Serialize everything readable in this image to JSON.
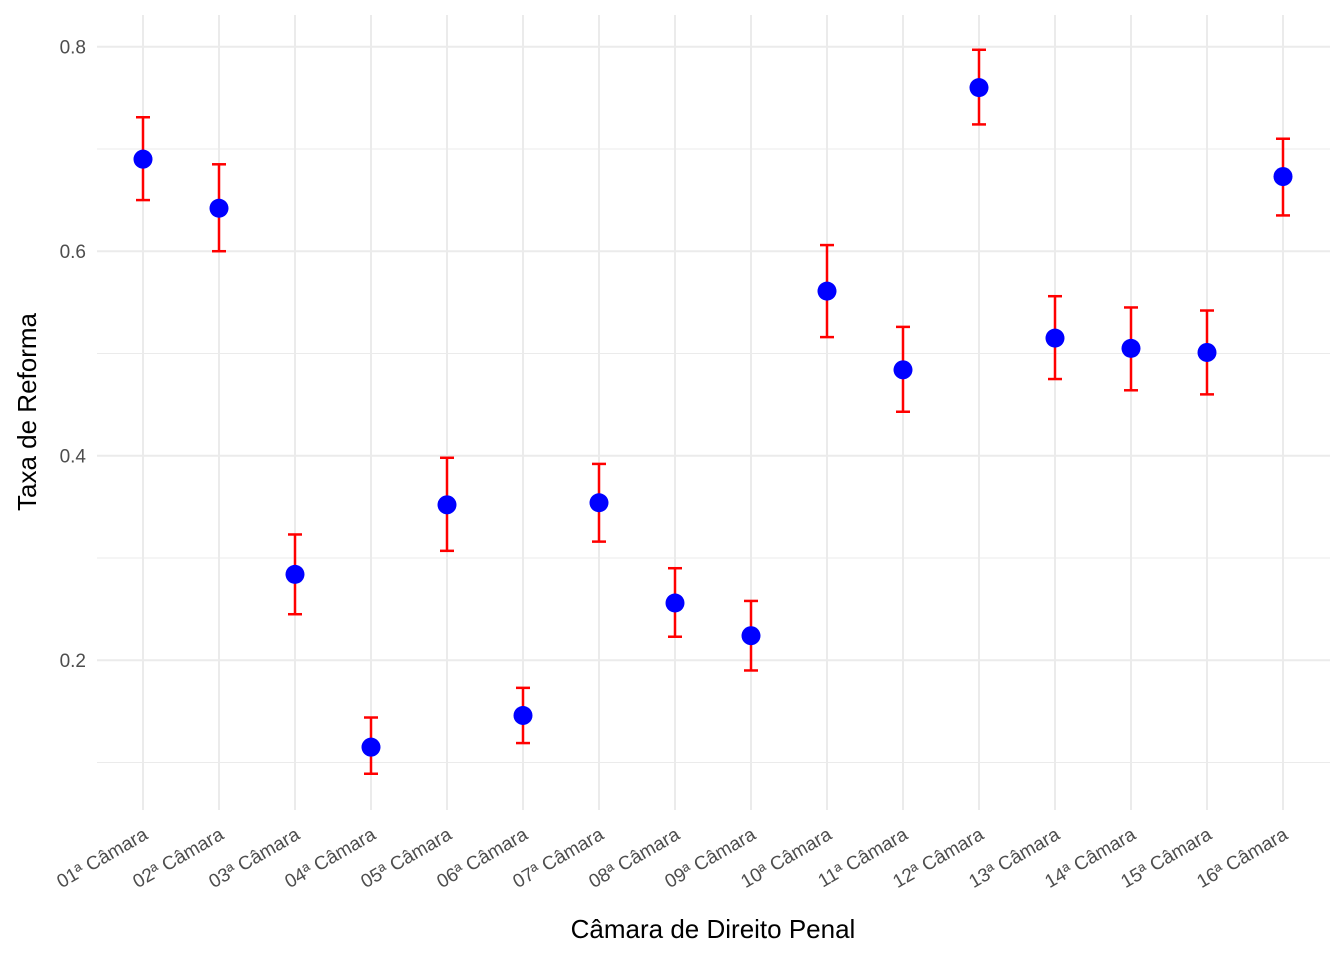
{
  "chart_data": {
    "type": "scatter",
    "title": "",
    "xlabel": "Câmara de Direito Penal",
    "ylabel": "Taxa de Reforma",
    "categories": [
      "01ª Câmara",
      "02ª Câmara",
      "03ª Câmara",
      "04ª Câmara",
      "05ª Câmara",
      "06ª Câmara",
      "07ª Câmara",
      "08ª Câmara",
      "09ª Câmara",
      "10ª Câmara",
      "11ª Câmara",
      "12ª Câmara",
      "13ª Câmara",
      "14ª Câmara",
      "15ª Câmara",
      "16ª Câmara"
    ],
    "values": [
      0.69,
      0.642,
      0.284,
      0.115,
      0.352,
      0.146,
      0.354,
      0.256,
      0.224,
      0.561,
      0.484,
      0.76,
      0.515,
      0.505,
      0.501,
      0.673
    ],
    "lower": [
      0.65,
      0.6,
      0.245,
      0.089,
      0.307,
      0.119,
      0.316,
      0.223,
      0.19,
      0.516,
      0.443,
      0.724,
      0.475,
      0.464,
      0.46,
      0.635
    ],
    "upper": [
      0.731,
      0.685,
      0.323,
      0.144,
      0.398,
      0.173,
      0.392,
      0.29,
      0.258,
      0.606,
      0.526,
      0.797,
      0.556,
      0.545,
      0.542,
      0.71
    ],
    "ylim": [
      0.078,
      0.831
    ],
    "yticks": [
      0.2,
      0.4,
      0.6,
      0.8
    ],
    "ytick_labels": [
      "0.2",
      "0.4",
      "0.6",
      "0.8"
    ],
    "yminor": [
      0.1,
      0.3,
      0.5,
      0.7
    ],
    "grid": true,
    "point_color": "#0000ff",
    "errorbar_color": "#ff0000"
  }
}
